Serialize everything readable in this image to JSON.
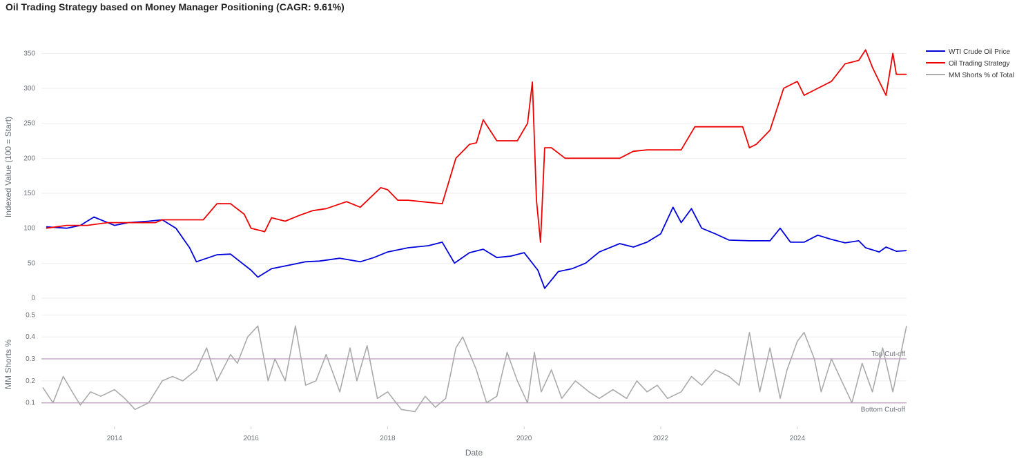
{
  "title": "Oil Trading Strategy based on Money Manager Positioning (CAGR: 9.61%)",
  "colors": {
    "wti": "#0000dd",
    "strategy": "#ee0000",
    "shorts": "#aaaaaa",
    "cutoff": "#c9a9c9",
    "grid": "#eeeeee"
  },
  "chart_data": [
    {
      "type": "line",
      "ylabel": "Indexed Value (100 = Start)",
      "ylim": [
        0,
        375
      ],
      "yticks": [
        "0",
        "50",
        "100",
        "150",
        "200",
        "250",
        "300",
        "350"
      ],
      "xlim": [
        2012.93,
        2025.6
      ],
      "legend_position": "top-right",
      "series": [
        {
          "name": "WTI Crude Oil Price",
          "x": [
            2013.0,
            2013.3,
            2013.5,
            2013.7,
            2014.0,
            2014.2,
            2014.5,
            2014.7,
            2014.9,
            2015.1,
            2015.2,
            2015.5,
            2015.7,
            2016.0,
            2016.1,
            2016.3,
            2016.6,
            2016.8,
            2017.0,
            2017.3,
            2017.6,
            2017.8,
            2018.0,
            2018.3,
            2018.6,
            2018.8,
            2018.98,
            2019.2,
            2019.4,
            2019.6,
            2019.8,
            2020.0,
            2020.2,
            2020.3,
            2020.5,
            2020.7,
            2020.9,
            2021.1,
            2021.4,
            2021.6,
            2021.8,
            2022.0,
            2022.18,
            2022.3,
            2022.45,
            2022.6,
            2022.8,
            2023.0,
            2023.3,
            2023.6,
            2023.75,
            2023.9,
            2024.1,
            2024.3,
            2024.5,
            2024.7,
            2024.9,
            2025.0,
            2025.2,
            2025.3,
            2025.45,
            2025.6
          ],
          "y": [
            102,
            100,
            104,
            116,
            104,
            108,
            110,
            112,
            100,
            72,
            52,
            62,
            63,
            40,
            30,
            42,
            48,
            52,
            53,
            57,
            52,
            58,
            66,
            72,
            75,
            80,
            50,
            65,
            70,
            58,
            60,
            65,
            40,
            14,
            38,
            42,
            50,
            66,
            78,
            73,
            80,
            92,
            130,
            108,
            128,
            100,
            92,
            83,
            82,
            82,
            100,
            80,
            80,
            90,
            84,
            79,
            82,
            72,
            66,
            73,
            67,
            68
          ]
        },
        {
          "name": "Oil Trading Strategy",
          "x": [
            2013.0,
            2013.3,
            2013.6,
            2013.9,
            2014.2,
            2014.6,
            2014.7,
            2015.3,
            2015.5,
            2015.7,
            2015.9,
            2016.0,
            2016.2,
            2016.3,
            2016.5,
            2016.7,
            2016.9,
            2017.1,
            2017.4,
            2017.6,
            2017.9,
            2018.0,
            2018.15,
            2018.3,
            2018.5,
            2018.8,
            2019.0,
            2019.2,
            2019.3,
            2019.4,
            2019.6,
            2019.9,
            2020.05,
            2020.12,
            2020.18,
            2020.24,
            2020.3,
            2020.4,
            2020.6,
            2021.4,
            2021.6,
            2021.8,
            2022.3,
            2022.5,
            2022.6,
            2023.2,
            2023.3,
            2023.4,
            2023.6,
            2023.8,
            2024.0,
            2024.1,
            2024.3,
            2024.5,
            2024.7,
            2024.9,
            2025.0,
            2025.1,
            2025.2,
            2025.3,
            2025.4,
            2025.45,
            2025.6
          ],
          "y": [
            100,
            104,
            104,
            108,
            108,
            108,
            112,
            112,
            135,
            135,
            120,
            100,
            95,
            115,
            110,
            118,
            125,
            128,
            138,
            130,
            158,
            155,
            140,
            140,
            138,
            135,
            200,
            220,
            222,
            255,
            225,
            225,
            250,
            309,
            140,
            80,
            215,
            215,
            200,
            200,
            210,
            212,
            212,
            245,
            245,
            245,
            215,
            220,
            240,
            300,
            310,
            290,
            300,
            310,
            335,
            340,
            355,
            330,
            310,
            290,
            350,
            320,
            320
          ]
        }
      ]
    },
    {
      "type": "line",
      "xlabel": "Date",
      "ylabel": "MM Shorts %",
      "ylim": [
        0.03,
        0.52
      ],
      "yticks": [
        "0.1",
        "0.2",
        "0.3",
        "0.4",
        "0.5"
      ],
      "xticks": [
        "2014",
        "2016",
        "2018",
        "2020",
        "2022",
        "2024"
      ],
      "xlim": [
        2012.93,
        2025.6
      ],
      "series": [
        {
          "name": "MM Shorts % of Total",
          "x": [
            2012.95,
            2013.1,
            2013.25,
            2013.4,
            2013.5,
            2013.65,
            2013.8,
            2014.0,
            2014.15,
            2014.3,
            2014.5,
            2014.7,
            2014.85,
            2015.0,
            2015.2,
            2015.35,
            2015.5,
            2015.7,
            2015.8,
            2015.95,
            2016.1,
            2016.25,
            2016.35,
            2016.5,
            2016.65,
            2016.8,
            2016.95,
            2017.1,
            2017.3,
            2017.45,
            2017.55,
            2017.7,
            2017.85,
            2018.0,
            2018.2,
            2018.4,
            2018.55,
            2018.7,
            2018.85,
            2019.0,
            2019.1,
            2019.3,
            2019.45,
            2019.6,
            2019.75,
            2019.9,
            2020.05,
            2020.15,
            2020.25,
            2020.4,
            2020.55,
            2020.75,
            2020.95,
            2021.1,
            2021.3,
            2021.5,
            2021.65,
            2021.8,
            2021.95,
            2022.1,
            2022.3,
            2022.45,
            2022.6,
            2022.8,
            2023.0,
            2023.15,
            2023.3,
            2023.45,
            2023.6,
            2023.75,
            2023.85,
            2024.0,
            2024.1,
            2024.25,
            2024.35,
            2024.5,
            2024.65,
            2024.8,
            2024.95,
            2025.1,
            2025.25,
            2025.4,
            2025.5,
            2025.6
          ],
          "y": [
            0.17,
            0.1,
            0.22,
            0.14,
            0.09,
            0.15,
            0.13,
            0.16,
            0.12,
            0.07,
            0.1,
            0.2,
            0.22,
            0.2,
            0.25,
            0.35,
            0.2,
            0.32,
            0.28,
            0.4,
            0.45,
            0.2,
            0.3,
            0.2,
            0.45,
            0.18,
            0.2,
            0.32,
            0.15,
            0.35,
            0.2,
            0.36,
            0.12,
            0.15,
            0.07,
            0.06,
            0.13,
            0.08,
            0.12,
            0.35,
            0.4,
            0.25,
            0.1,
            0.13,
            0.33,
            0.2,
            0.1,
            0.33,
            0.15,
            0.25,
            0.12,
            0.2,
            0.15,
            0.12,
            0.16,
            0.12,
            0.2,
            0.15,
            0.18,
            0.12,
            0.15,
            0.22,
            0.18,
            0.25,
            0.22,
            0.18,
            0.42,
            0.15,
            0.35,
            0.12,
            0.25,
            0.38,
            0.42,
            0.3,
            0.15,
            0.3,
            0.2,
            0.1,
            0.28,
            0.15,
            0.35,
            0.15,
            0.3,
            0.45
          ]
        }
      ],
      "cutoffs": [
        {
          "label": "Top Cut-off",
          "value": 0.3
        },
        {
          "label": "Bottom Cut-off",
          "value": 0.1
        }
      ]
    }
  ]
}
